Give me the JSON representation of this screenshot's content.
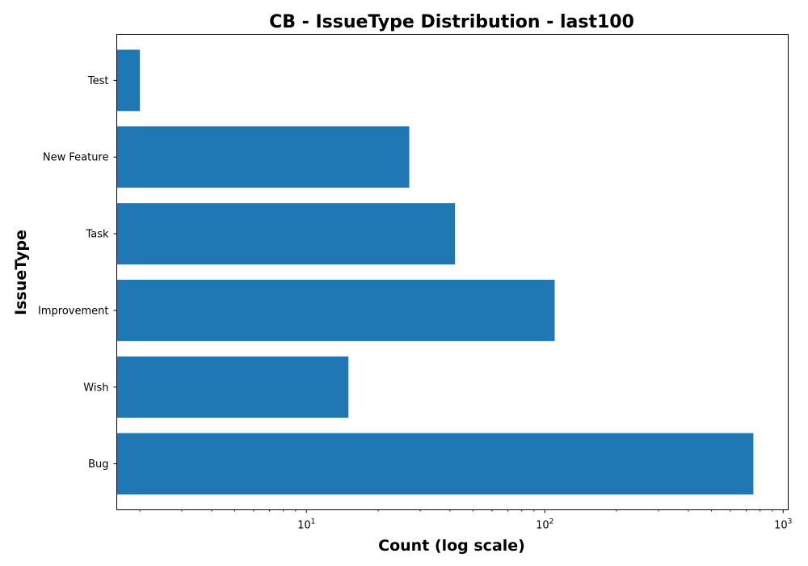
{
  "chart_data": {
    "type": "bar",
    "orientation": "horizontal",
    "title": "CB - IssueType Distribution - last100",
    "xlabel": "Count (log scale)",
    "ylabel": "IssueType",
    "x_scale": "log",
    "xlim": [
      1.6,
      1050
    ],
    "categories": [
      "Bug",
      "Wish",
      "Improvement",
      "Task",
      "New Feature",
      "Test"
    ],
    "values": [
      750,
      15,
      110,
      42,
      27,
      2
    ],
    "x_major_ticks": [
      {
        "value": 10,
        "base": "10",
        "exponent": "1"
      },
      {
        "value": 100,
        "base": "10",
        "exponent": "2"
      },
      {
        "value": 1000,
        "base": "10",
        "exponent": "3"
      }
    ],
    "bar_color": "#1f77b4",
    "grid": false,
    "legend": "none"
  }
}
